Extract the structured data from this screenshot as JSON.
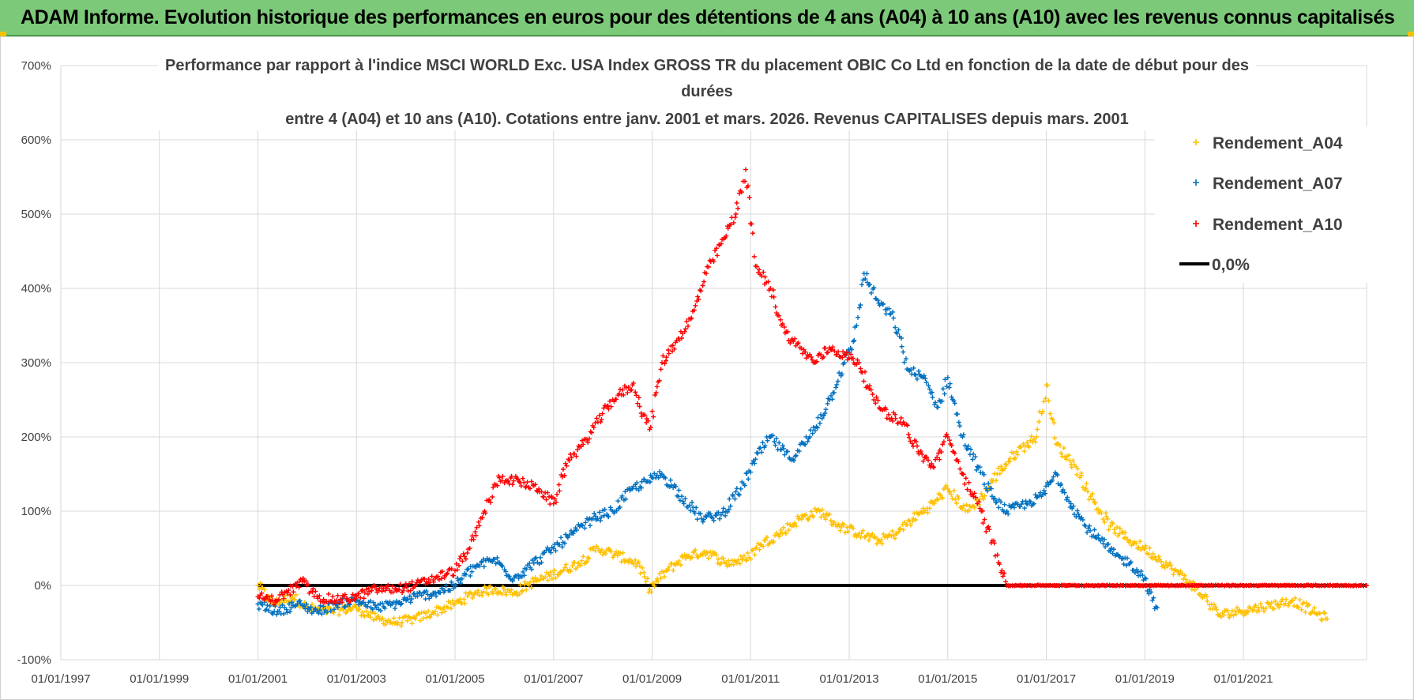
{
  "banner": {
    "title": "ADAM Informe. Evolution historique des performances en euros pour des détentions de 4 ans (A04) à 10 ans (A10) avec les revenus connus capitalisés"
  },
  "chart_data": {
    "type": "scatter",
    "title_lines": [
      "Performance par rapport à l'indice MSCI WORLD Exc. USA Index GROSS TR  du placement OBIC Co Ltd en fonction de la date de début pour des",
      "durées",
      "entre 4 (A04) et 10 ans (A10). Cotations entre janv. 2001 et mars. 2026. Revenus CAPITALISES depuis mars. 2001"
    ],
    "ylim": [
      -100,
      700
    ],
    "yticks": [
      -100,
      0,
      100,
      200,
      300,
      400,
      500,
      600,
      700
    ],
    "ytick_labels": [
      "-100%",
      "0%",
      "100%",
      "200%",
      "300%",
      "400%",
      "500%",
      "600%",
      "700%"
    ],
    "xlim": [
      1997.0,
      2023.5
    ],
    "xticks": [
      1997,
      1999,
      2001,
      2003,
      2005,
      2007,
      2009,
      2011,
      2013,
      2015,
      2017,
      2019,
      2021
    ],
    "xtick_labels": [
      "01/01/1997",
      "01/01/1999",
      "01/01/2001",
      "01/01/2003",
      "01/01/2005",
      "01/01/2007",
      "01/01/2009",
      "01/01/2011",
      "01/01/2013",
      "01/01/2015",
      "01/01/2017",
      "01/01/2019",
      "01/01/2021"
    ],
    "legend_position": "top-right",
    "series": [
      {
        "name": "Rendement_A04",
        "color": "#ffc000",
        "marker": "+",
        "points": [
          [
            2001.0,
            0
          ],
          [
            2001.3,
            -25
          ],
          [
            2001.7,
            -15
          ],
          [
            2002.0,
            -30
          ],
          [
            2002.5,
            -35
          ],
          [
            2003.0,
            -30
          ],
          [
            2003.4,
            -45
          ],
          [
            2003.8,
            -50
          ],
          [
            2004.2,
            -45
          ],
          [
            2004.6,
            -35
          ],
          [
            2005.0,
            -25
          ],
          [
            2005.4,
            -10
          ],
          [
            2005.8,
            -5
          ],
          [
            2006.2,
            -10
          ],
          [
            2006.6,
            5
          ],
          [
            2007.0,
            15
          ],
          [
            2007.5,
            30
          ],
          [
            2007.9,
            50
          ],
          [
            2008.3,
            40
          ],
          [
            2008.7,
            30
          ],
          [
            2008.95,
            -5
          ],
          [
            2009.3,
            20
          ],
          [
            2009.7,
            40
          ],
          [
            2010.1,
            45
          ],
          [
            2010.5,
            30
          ],
          [
            2010.9,
            35
          ],
          [
            2011.2,
            55
          ],
          [
            2011.6,
            70
          ],
          [
            2012.0,
            90
          ],
          [
            2012.4,
            100
          ],
          [
            2012.8,
            80
          ],
          [
            2013.2,
            70
          ],
          [
            2013.6,
            60
          ],
          [
            2013.95,
            70
          ],
          [
            2014.3,
            90
          ],
          [
            2014.7,
            110
          ],
          [
            2015.0,
            130
          ],
          [
            2015.4,
            100
          ],
          [
            2015.7,
            120
          ],
          [
            2016.0,
            150
          ],
          [
            2016.4,
            180
          ],
          [
            2016.8,
            200
          ],
          [
            2017.0,
            270
          ],
          [
            2017.2,
            190
          ],
          [
            2017.6,
            160
          ],
          [
            2017.9,
            120
          ],
          [
            2018.3,
            80
          ],
          [
            2018.7,
            60
          ],
          [
            2019.0,
            50
          ],
          [
            2019.3,
            35
          ],
          [
            2019.6,
            20
          ],
          [
            2019.9,
            5
          ],
          [
            2020.2,
            -15
          ],
          [
            2020.5,
            -40
          ],
          [
            2020.9,
            -35
          ],
          [
            2021.3,
            -30
          ],
          [
            2021.7,
            -25
          ],
          [
            2022.0,
            -20
          ],
          [
            2022.4,
            -35
          ],
          [
            2022.7,
            -45
          ]
        ]
      },
      {
        "name": "Rendement_A07",
        "color": "#0070c0",
        "marker": "+",
        "points": [
          [
            2001.0,
            -25
          ],
          [
            2001.4,
            -35
          ],
          [
            2001.8,
            -25
          ],
          [
            2002.2,
            -35
          ],
          [
            2002.6,
            -25
          ],
          [
            2003.0,
            -20
          ],
          [
            2003.4,
            -30
          ],
          [
            2003.8,
            -25
          ],
          [
            2004.2,
            -15
          ],
          [
            2004.6,
            -10
          ],
          [
            2005.0,
            0
          ],
          [
            2005.4,
            25
          ],
          [
            2005.8,
            35
          ],
          [
            2006.2,
            10
          ],
          [
            2006.6,
            30
          ],
          [
            2007.0,
            50
          ],
          [
            2007.4,
            70
          ],
          [
            2007.8,
            90
          ],
          [
            2008.2,
            100
          ],
          [
            2008.6,
            130
          ],
          [
            2008.9,
            140
          ],
          [
            2009.2,
            150
          ],
          [
            2009.6,
            120
          ],
          [
            2010.0,
            90
          ],
          [
            2010.4,
            95
          ],
          [
            2010.8,
            130
          ],
          [
            2011.1,
            170
          ],
          [
            2011.4,
            200
          ],
          [
            2011.8,
            170
          ],
          [
            2012.2,
            200
          ],
          [
            2012.6,
            250
          ],
          [
            2012.9,
            300
          ],
          [
            2013.1,
            330
          ],
          [
            2013.3,
            420
          ],
          [
            2013.6,
            380
          ],
          [
            2013.9,
            360
          ],
          [
            2014.2,
            290
          ],
          [
            2014.5,
            280
          ],
          [
            2014.8,
            240
          ],
          [
            2015.0,
            280
          ],
          [
            2015.3,
            200
          ],
          [
            2015.6,
            160
          ],
          [
            2015.9,
            120
          ],
          [
            2016.2,
            100
          ],
          [
            2016.6,
            110
          ],
          [
            2016.9,
            120
          ],
          [
            2017.2,
            150
          ],
          [
            2017.5,
            110
          ],
          [
            2017.8,
            80
          ],
          [
            2018.1,
            60
          ],
          [
            2018.4,
            40
          ],
          [
            2018.7,
            30
          ],
          [
            2019.0,
            10
          ],
          [
            2019.15,
            -20
          ],
          [
            2019.25,
            -30
          ]
        ]
      },
      {
        "name": "Rendement_A10",
        "color": "#ff0000",
        "marker": "+",
        "points": [
          [
            2001.0,
            -15
          ],
          [
            2001.3,
            -20
          ],
          [
            2001.6,
            -10
          ],
          [
            2001.9,
            5
          ],
          [
            2002.2,
            -15
          ],
          [
            2002.6,
            -20
          ],
          [
            2003.0,
            -15
          ],
          [
            2003.4,
            -5
          ],
          [
            2003.8,
            -5
          ],
          [
            2004.2,
            0
          ],
          [
            2004.6,
            10
          ],
          [
            2005.0,
            20
          ],
          [
            2005.3,
            50
          ],
          [
            2005.6,
            100
          ],
          [
            2005.9,
            145
          ],
          [
            2006.3,
            140
          ],
          [
            2006.7,
            130
          ],
          [
            2007.0,
            110
          ],
          [
            2007.3,
            170
          ],
          [
            2007.6,
            190
          ],
          [
            2007.9,
            220
          ],
          [
            2008.2,
            250
          ],
          [
            2008.6,
            270
          ],
          [
            2008.95,
            210
          ],
          [
            2009.2,
            300
          ],
          [
            2009.5,
            330
          ],
          [
            2009.8,
            360
          ],
          [
            2010.1,
            420
          ],
          [
            2010.4,
            460
          ],
          [
            2010.7,
            500
          ],
          [
            2010.9,
            560
          ],
          [
            2011.1,
            430
          ],
          [
            2011.4,
            400
          ],
          [
            2011.7,
            340
          ],
          [
            2012.0,
            320
          ],
          [
            2012.3,
            300
          ],
          [
            2012.6,
            320
          ],
          [
            2012.9,
            310
          ],
          [
            2013.2,
            300
          ],
          [
            2013.5,
            250
          ],
          [
            2013.8,
            230
          ],
          [
            2014.1,
            220
          ],
          [
            2014.4,
            180
          ],
          [
            2014.7,
            160
          ],
          [
            2015.0,
            200
          ],
          [
            2015.3,
            150
          ],
          [
            2015.6,
            110
          ],
          [
            2015.9,
            60
          ],
          [
            2016.1,
            20
          ],
          [
            2016.2,
            0
          ],
          [
            2017.0,
            0
          ],
          [
            2018.0,
            0
          ],
          [
            2019.0,
            0
          ],
          [
            2020.0,
            0
          ],
          [
            2021.0,
            0
          ],
          [
            2022.0,
            0
          ],
          [
            2023.0,
            0
          ],
          [
            2023.5,
            0
          ]
        ]
      }
    ],
    "reference_line": {
      "name": "0,0%",
      "color": "#000000",
      "y": 0,
      "x_range": [
        2001.0,
        2023.5
      ]
    }
  }
}
